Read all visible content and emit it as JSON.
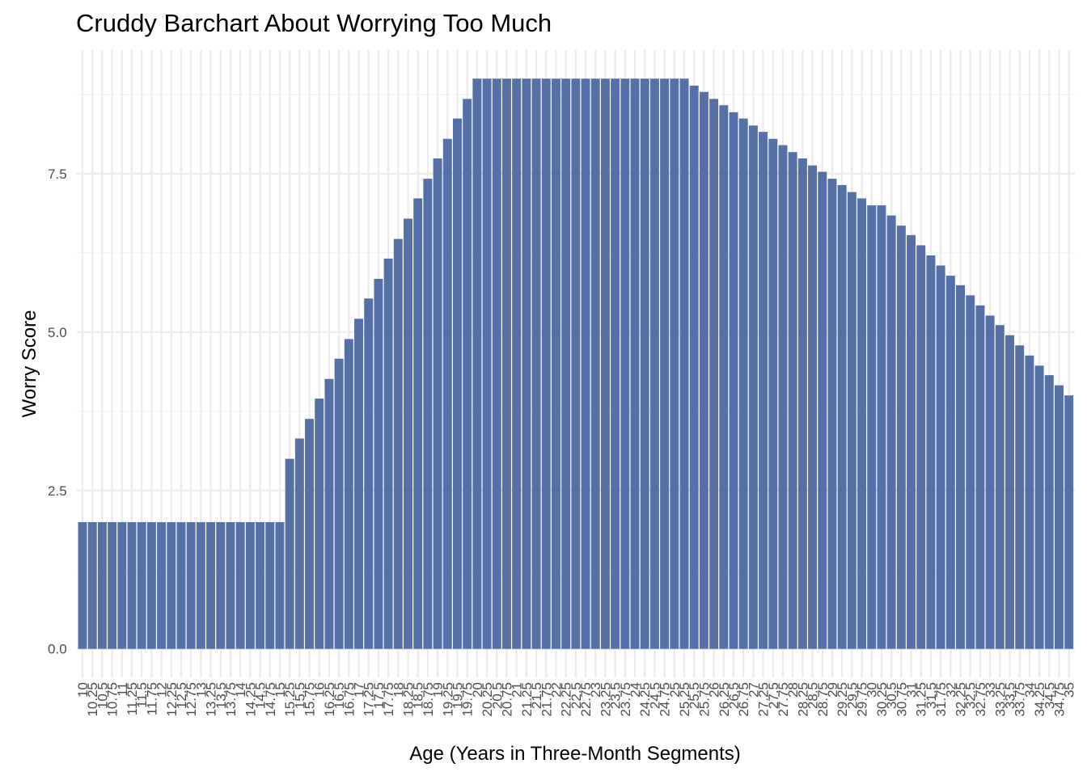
{
  "chart_data": {
    "type": "bar",
    "title": "Cruddy Barchart About Worrying Too Much",
    "x_label": "Age (Years in Three-Month Segments)",
    "y_label": "Worry Score",
    "color": "#5470a6",
    "categories": [
      "10",
      "10.25",
      "10.5",
      "10.75",
      "11",
      "11.25",
      "11.5",
      "11.75",
      "12",
      "12.25",
      "12.5",
      "12.75",
      "13",
      "13.25",
      "13.5",
      "13.75",
      "14",
      "14.25",
      "14.5",
      "14.75",
      "15",
      "15.25",
      "15.5",
      "15.75",
      "16",
      "16.25",
      "16.5",
      "16.75",
      "17",
      "17.25",
      "17.5",
      "17.75",
      "18",
      "18.25",
      "18.5",
      "18.75",
      "19",
      "19.25",
      "19.5",
      "19.75",
      "20",
      "20.25",
      "20.5",
      "20.75",
      "21",
      "21.25",
      "21.5",
      "21.75",
      "22",
      "22.25",
      "22.5",
      "22.75",
      "23",
      "23.25",
      "23.5",
      "23.75",
      "24",
      "24.25",
      "24.5",
      "24.75",
      "25",
      "25.25",
      "25.5",
      "25.75",
      "26",
      "26.25",
      "26.5",
      "26.75",
      "27",
      "27.25",
      "27.5",
      "27.75",
      "28",
      "28.25",
      "28.5",
      "28.75",
      "29",
      "29.25",
      "29.5",
      "29.75",
      "30",
      "30.25",
      "30.5",
      "30.75",
      "31",
      "31.25",
      "31.5",
      "31.75",
      "32",
      "32.25",
      "32.5",
      "32.75",
      "33",
      "33.25",
      "33.5",
      "33.75",
      "34",
      "34.25",
      "34.5",
      "34.75",
      "35"
    ],
    "values": [
      2,
      2,
      2,
      2,
      2,
      2,
      2,
      2,
      2,
      2,
      2,
      2,
      2,
      2,
      2,
      2,
      2,
      2,
      2,
      2,
      2,
      3.0,
      3.32,
      3.63,
      3.95,
      4.26,
      4.58,
      4.89,
      5.21,
      5.53,
      5.84,
      6.16,
      6.47,
      6.79,
      7.11,
      7.42,
      7.74,
      8.05,
      8.37,
      8.68,
      9.0,
      9,
      9,
      9,
      9,
      9,
      9,
      9,
      9,
      9,
      9,
      9,
      9,
      9,
      9,
      9,
      9,
      9,
      9,
      9,
      9,
      9,
      8.89,
      8.79,
      8.68,
      8.58,
      8.47,
      8.37,
      8.26,
      8.16,
      8.05,
      7.95,
      7.84,
      7.74,
      7.63,
      7.53,
      7.42,
      7.32,
      7.21,
      7.11,
      7.0,
      7.0,
      6.84,
      6.68,
      6.53,
      6.37,
      6.21,
      6.05,
      5.89,
      5.74,
      5.58,
      5.42,
      5.26,
      5.11,
      4.95,
      4.79,
      4.63,
      4.47,
      4.32,
      4.16,
      4.0
    ],
    "ylim": [
      -0.45,
      9.45
    ],
    "yticks": [
      {
        "value": 0,
        "label": "0.0"
      },
      2.5,
      {
        "value": 5,
        "label": "5.0"
      },
      7.5
    ],
    "grid": true
  }
}
